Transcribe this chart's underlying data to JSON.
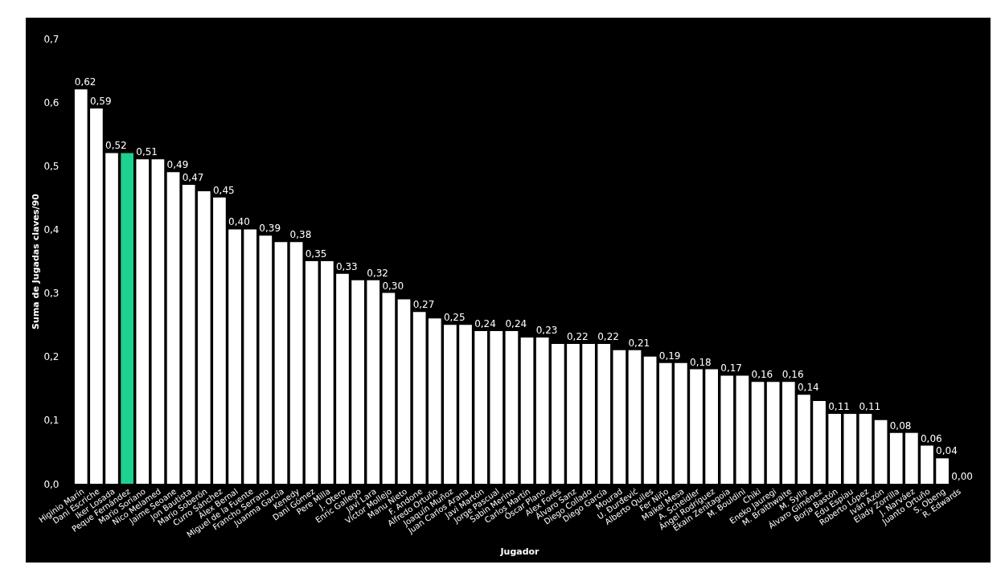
{
  "chart_data": {
    "type": "bar",
    "xlabel": "Jugador",
    "ylabel": "Suma de Jugadas claves/90",
    "categories": [
      "Higinio Marín",
      "Dani Escriche",
      "Iker Losada",
      "Peque Fernández",
      "Mario Soriano",
      "Nico Melamed",
      "Jaime Seoane",
      "Jon Bautista",
      "Mario Soberón",
      "Curro Sánchez",
      "Álex Bernal",
      "Miguel de la Fuente",
      "Francho Serrano",
      "Juanma García",
      "Kenedy",
      "Dani Gómez",
      "Pere Milla",
      "J. Otero",
      "Enric Gallego",
      "Javi Lara",
      "Víctor Mollejo",
      "Manu Nieto",
      "F. Andone",
      "Alfredo Ortuño",
      "Joaquín Muñoz",
      "Juan Carlos Arana",
      "Javi Martón",
      "Jorge Pascual",
      "Sabin Merino",
      "Carlos Martín",
      "Óscar Plano",
      "Alex Forés",
      "Álvaro Sanz",
      "Diego Collado",
      "Diego García",
      "Mourad",
      "U. Đurđević",
      "Alberto Quiles",
      "Fer Niño",
      "Maikel Mesa",
      "A. Scheidler",
      "Ángel Rodríguez",
      "Ekain Zenitagoia",
      "M. Bouldini",
      "Chiki",
      "Eneko Jauregi",
      "M. Braithwaite",
      "M. Sylla",
      "Álvaro Giménez",
      "Borja Bastón",
      "Edu Espiau",
      "Roberto López",
      "Iván Azón",
      "Elady Zorrilla",
      "J. Narváez",
      "Juanto Ortuño",
      "S. Obeng",
      "R. Edwards"
    ],
    "values": [
      0.62,
      0.59,
      0.52,
      0.52,
      0.51,
      0.51,
      0.49,
      0.47,
      0.46,
      0.45,
      0.4,
      0.4,
      0.39,
      0.38,
      0.38,
      0.35,
      0.35,
      0.33,
      0.32,
      0.32,
      0.3,
      0.29,
      0.27,
      0.26,
      0.25,
      0.25,
      0.24,
      0.24,
      0.24,
      0.23,
      0.23,
      0.22,
      0.22,
      0.22,
      0.22,
      0.21,
      0.21,
      0.2,
      0.19,
      0.19,
      0.18,
      0.18,
      0.17,
      0.17,
      0.16,
      0.16,
      0.16,
      0.14,
      0.13,
      0.11,
      0.11,
      0.11,
      0.1,
      0.08,
      0.08,
      0.06,
      0.04,
      0.0
    ],
    "value_labels": [
      "0,62",
      "0,59",
      "0,52",
      null,
      "0,51",
      null,
      "0,49",
      "0,47",
      null,
      "0,45",
      "0,40",
      null,
      "0,39",
      null,
      "0,38",
      "0,35",
      null,
      "0,33",
      null,
      "0,32",
      "0,30",
      null,
      "0,27",
      null,
      "0,25",
      null,
      "0,24",
      null,
      "0,24",
      null,
      "0,23",
      null,
      "0,22",
      null,
      "0,22",
      null,
      "0,21",
      null,
      "0,19",
      null,
      "0,18",
      null,
      "0,17",
      null,
      "0,16",
      null,
      "0,16",
      "0,14",
      null,
      "0,11",
      null,
      "0,11",
      null,
      "0,08",
      null,
      "0,06",
      "0,04",
      "0,00"
    ],
    "colors": [
      "#ffffff",
      "#ffffff",
      "#ffffff",
      "#1ed18e",
      "#ffffff",
      "#ffffff",
      "#ffffff",
      "#ffffff",
      "#ffffff",
      "#ffffff",
      "#ffffff",
      "#ffffff",
      "#ffffff",
      "#ffffff",
      "#ffffff",
      "#ffffff",
      "#ffffff",
      "#ffffff",
      "#ffffff",
      "#ffffff",
      "#ffffff",
      "#ffffff",
      "#ffffff",
      "#ffffff",
      "#ffffff",
      "#ffffff",
      "#ffffff",
      "#ffffff",
      "#ffffff",
      "#ffffff",
      "#ffffff",
      "#ffffff",
      "#ffffff",
      "#ffffff",
      "#ffffff",
      "#ffffff",
      "#ffffff",
      "#ffffff",
      "#ffffff",
      "#ffffff",
      "#ffffff",
      "#ffffff",
      "#ffffff",
      "#ffffff",
      "#ffffff",
      "#ffffff",
      "#ffffff",
      "#ffffff",
      "#ffffff",
      "#ffffff",
      "#ffffff",
      "#ffffff",
      "#ffffff",
      "#ffffff",
      "#ffffff",
      "#ffffff",
      "#ffffff",
      "#ffffff"
    ],
    "ylim": [
      0,
      0.7
    ],
    "yticks": [
      {
        "value": 0,
        "label": "0,0"
      },
      {
        "value": 0.1,
        "label": "0,1"
      },
      {
        "value": 0.2,
        "label": "0,2"
      },
      {
        "value": 0.3,
        "label": "0,3"
      },
      {
        "value": 0.4,
        "label": "0,4"
      },
      {
        "value": 0.5,
        "label": "0,5"
      },
      {
        "value": 0.6,
        "label": "0,6"
      },
      {
        "value": 0.7,
        "label": "0,7"
      }
    ],
    "grid": false
  }
}
